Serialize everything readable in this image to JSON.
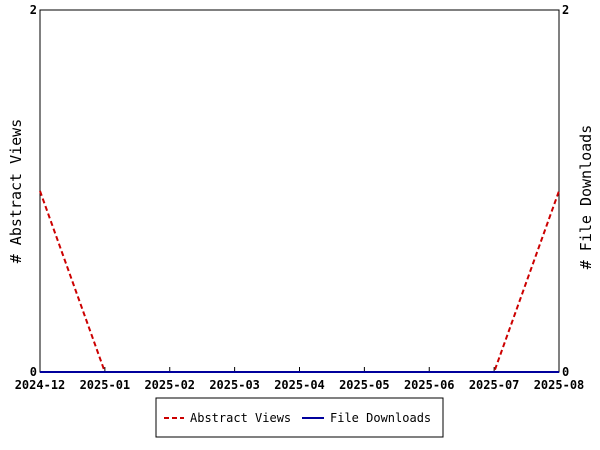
{
  "chart_data": {
    "type": "line",
    "title": "",
    "x": [
      "2024-12",
      "2025-01",
      "2025-02",
      "2025-03",
      "2025-04",
      "2025-05",
      "2025-06",
      "2025-07",
      "2025-08"
    ],
    "xlim": [
      "2024-12",
      "2025-08"
    ],
    "y_left": {
      "label": "# Abstract Views",
      "ylim": [
        0,
        2
      ],
      "ticks": [
        "0",
        "2"
      ]
    },
    "y_right": {
      "label": "# File Downloads",
      "ylim": [
        0,
        2
      ],
      "ticks": [
        "0",
        "2"
      ]
    },
    "series": [
      {
        "name": "Abstract Views",
        "axis": "left",
        "color": "#cc0000",
        "dash": "dashed",
        "points": [
          [
            "2024-12",
            1
          ],
          [
            "2025-01",
            0
          ],
          [
            "2025-07",
            0
          ],
          [
            "2025-08",
            1
          ]
        ]
      },
      {
        "name": "File Downloads",
        "axis": "right",
        "color": "#00009c",
        "dash": "solid",
        "points": [
          [
            "2024-12",
            0
          ],
          [
            "2025-08",
            0
          ]
        ]
      }
    ],
    "grid": false,
    "legend": "bottom-center"
  }
}
